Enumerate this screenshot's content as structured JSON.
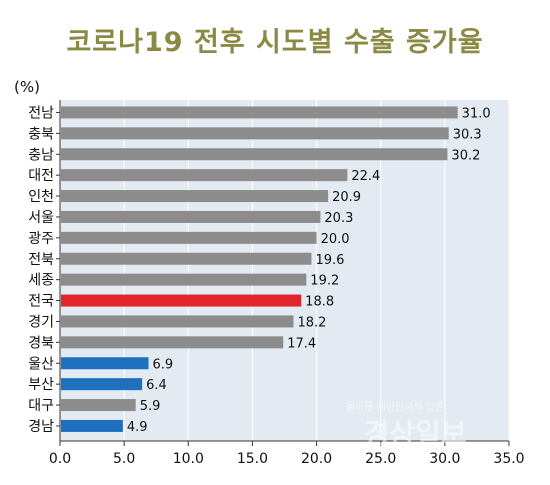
{
  "colors": {
    "title": "#8a8a45",
    "plot_background": "#e3eaf1",
    "bar_default": "#8c8c8c",
    "bar_highlight": "#e0262a",
    "bar_low": "#1f6fbf"
  },
  "chart_data": {
    "type": "bar",
    "orientation": "horizontal",
    "title": "코로나19 전후 시도별 수출 증가율",
    "unit_label": "(%)",
    "xlim": [
      0,
      35
    ],
    "x_ticks": [
      "0.0",
      "5.0",
      "10.0",
      "15.0",
      "20.0",
      "25.0",
      "30.0",
      "35.0"
    ],
    "grid": true,
    "categories": [
      "전남",
      "충북",
      "충남",
      "대전",
      "인천",
      "서울",
      "광주",
      "전북",
      "세종",
      "전국",
      "경기",
      "경북",
      "울산",
      "부산",
      "대구",
      "경남"
    ],
    "values": [
      31.0,
      30.3,
      30.2,
      22.4,
      20.9,
      20.3,
      20.0,
      19.6,
      19.2,
      18.8,
      18.2,
      17.4,
      6.9,
      6.4,
      5.9,
      4.9
    ],
    "value_labels": [
      "31.0",
      "30.3",
      "30.2",
      "22.4",
      "20.9",
      "20.3",
      "20.0",
      "19.6",
      "19.2",
      "18.8",
      "18.2",
      "17.4",
      "6.9",
      "6.4",
      "5.9",
      "4.9"
    ],
    "bar_colors": [
      "bar_default",
      "bar_default",
      "bar_default",
      "bar_default",
      "bar_default",
      "bar_default",
      "bar_default",
      "bar_default",
      "bar_default",
      "bar_highlight",
      "bar_default",
      "bar_default",
      "bar_low",
      "bar_low",
      "bar_default",
      "bar_low"
    ]
  },
  "watermark": {
    "tagline": "올바른 대한민국의 언론",
    "brand": "경상일보"
  }
}
